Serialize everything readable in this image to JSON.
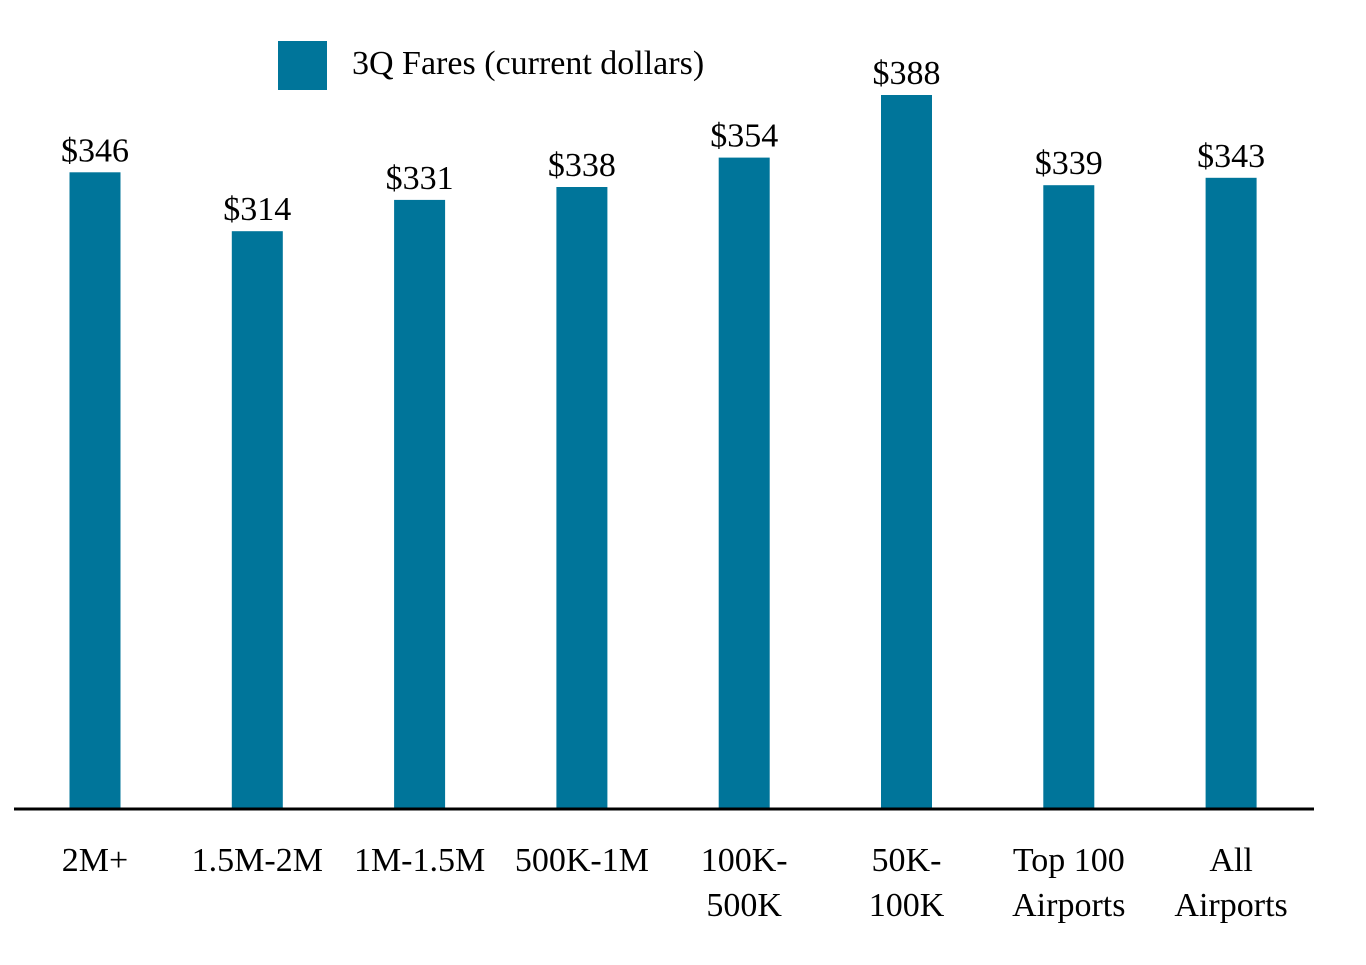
{
  "chart_data": {
    "type": "bar",
    "title": "",
    "xlabel": "",
    "ylabel": "",
    "ylim": [
      0,
      400
    ],
    "grid": false,
    "legend_position": "top-left",
    "categories": [
      [
        "2M+"
      ],
      [
        "1.5M-2M"
      ],
      [
        "1M-1.5M"
      ],
      [
        "500K-1M"
      ],
      [
        "100K-",
        "500K"
      ],
      [
        "50K-",
        "100K"
      ],
      [
        "Top 100",
        "Airports"
      ],
      [
        "All",
        "Airports"
      ]
    ],
    "series": [
      {
        "name": "3Q Fares (current dollars)",
        "color": "#00759a",
        "values": [
          346,
          314,
          331,
          338,
          354,
          388,
          339,
          343
        ],
        "data_labels": [
          "$346",
          "$314",
          "$331",
          "$338",
          "$354",
          "$388",
          "$339",
          "$343"
        ]
      }
    ],
    "axis_color": "#000000"
  }
}
